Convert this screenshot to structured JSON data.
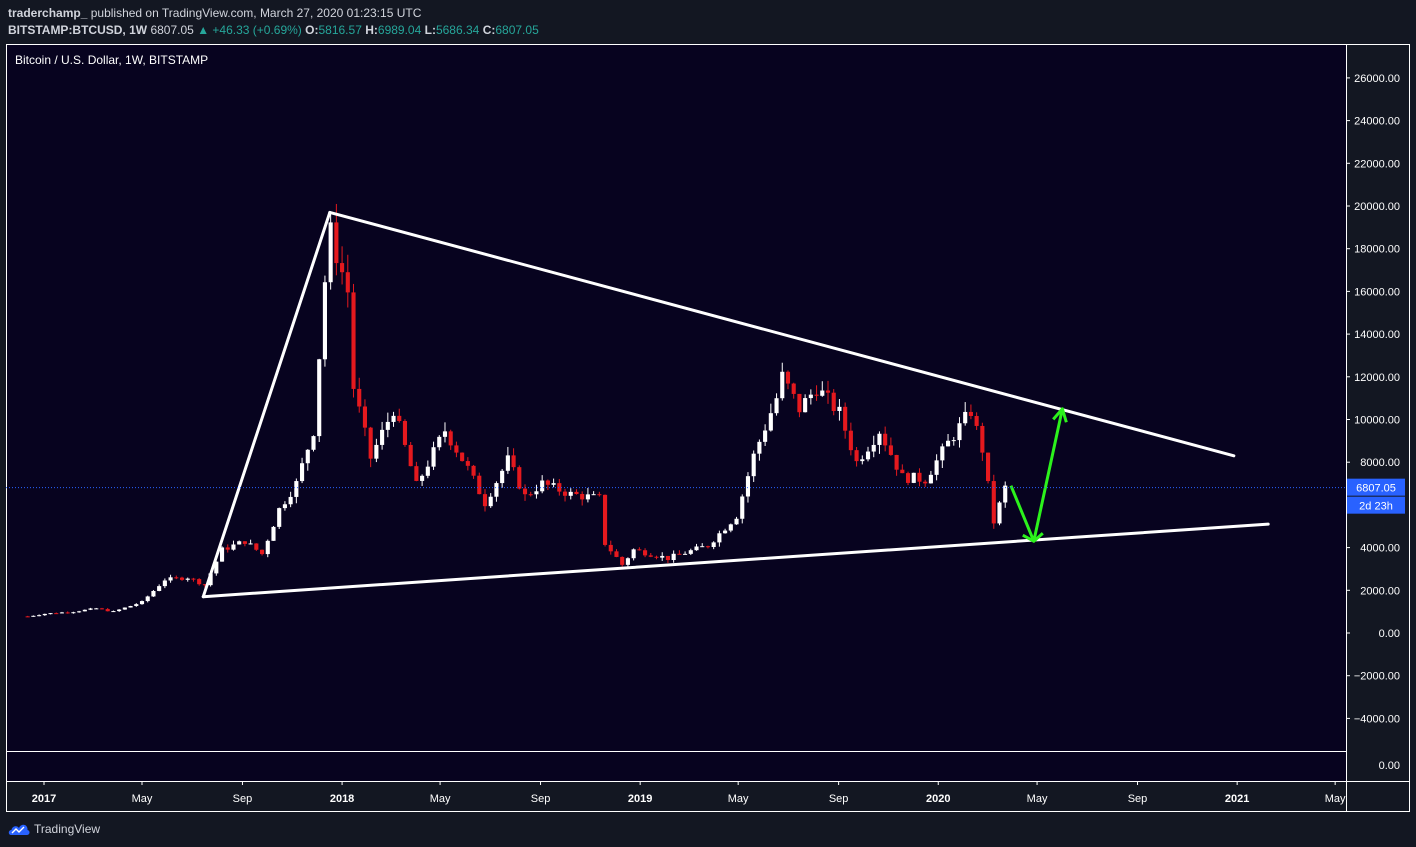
{
  "header": {
    "author": "traderchamp_",
    "published_text": "published on TradingView.com, March 27, 2020 01:23:15 UTC",
    "symbol": "BITSTAMP:BTCUSD, 1W",
    "last": "6807.05",
    "change": "▲ +46.33 (+0.69%)",
    "open_label": "O:",
    "open": "5816.57",
    "high_label": "H:",
    "high": "6989.04",
    "low_label": "L:",
    "low": "5686.34",
    "close_label": "C:",
    "close": "6807.05"
  },
  "footer": {
    "brand": "TradingView"
  },
  "colors": {
    "background": "#07031f",
    "up": "#ffffff",
    "down": "#e5191e",
    "trendline": "#ffffff",
    "arrow": "#2cf21c",
    "price_line": "#2962ff"
  },
  "chart_data": {
    "type": "candlestick",
    "title": "Bitcoin / U.S. Dollar, 1W, BITSTAMP",
    "ylim": [
      -5000,
      27000
    ],
    "y_ticks": [
      26000,
      24000,
      22000,
      20000,
      18000,
      16000,
      14000,
      12000,
      10000,
      8000,
      4000,
      2000,
      0,
      -2000,
      -4000
    ],
    "y_tick_labels": [
      "26000.00",
      "24000.00",
      "22000.00",
      "20000.00",
      "18000.00",
      "16000.00",
      "14000.00",
      "12000.00",
      "10000.00",
      "8000.00",
      "4000.00",
      "2000.00",
      "0.00",
      "−2000.00",
      "−4000.00"
    ],
    "secondary_pane_tick": "0.00",
    "x_tick_labels": [
      "2017",
      "May",
      "Sep",
      "2018",
      "May",
      "Sep",
      "2019",
      "May",
      "Sep",
      "2020",
      "May",
      "Sep",
      "2021",
      "May"
    ],
    "x_tick_dates": [
      "2017-01-01",
      "2017-05-01",
      "2017-09-01",
      "2018-01-01",
      "2018-05-01",
      "2018-09-01",
      "2019-01-01",
      "2019-05-01",
      "2019-09-01",
      "2020-01-01",
      "2020-05-01",
      "2020-09-01",
      "2021-01-01",
      "2021-05-01"
    ],
    "current_price": 6807.05,
    "current_price_label": "6807.05",
    "countdown_label": "2d 23h",
    "series_weekly_close": [
      [
        "2016-12-12",
        780
      ],
      [
        "2017-01-02",
        900
      ],
      [
        "2017-02-06",
        1000
      ],
      [
        "2017-03-06",
        1150
      ],
      [
        "2017-03-27",
        1000
      ],
      [
        "2017-05-01",
        1450
      ],
      [
        "2017-05-29",
        2500
      ],
      [
        "2017-06-26",
        2600
      ],
      [
        "2017-07-17",
        2250
      ],
      [
        "2017-08-07",
        3900
      ],
      [
        "2017-09-04",
        4300
      ],
      [
        "2017-09-25",
        3700
      ],
      [
        "2017-10-16",
        5800
      ],
      [
        "2017-11-06",
        7000
      ],
      [
        "2017-11-27",
        9500
      ],
      [
        "2017-12-11",
        16500
      ],
      [
        "2017-12-18",
        18700
      ],
      [
        "2018-01-08",
        16000
      ],
      [
        "2018-01-15",
        11500
      ],
      [
        "2018-02-05",
        8200
      ],
      [
        "2018-03-05",
        10500
      ],
      [
        "2018-04-02",
        6900
      ],
      [
        "2018-05-07",
        9500
      ],
      [
        "2018-06-04",
        7700
      ],
      [
        "2018-06-25",
        6100
      ],
      [
        "2018-07-23",
        8100
      ],
      [
        "2018-08-13",
        6400
      ],
      [
        "2018-09-03",
        7000
      ],
      [
        "2018-10-08",
        6500
      ],
      [
        "2018-11-12",
        6300
      ],
      [
        "2018-11-19",
        4200
      ],
      [
        "2018-12-10",
        3200
      ],
      [
        "2018-12-24",
        3900
      ],
      [
        "2019-02-04",
        3500
      ],
      [
        "2019-03-25",
        4100
      ],
      [
        "2019-04-29",
        5500
      ],
      [
        "2019-05-20",
        8300
      ],
      [
        "2019-06-17",
        11000
      ],
      [
        "2019-06-24",
        12000
      ],
      [
        "2019-07-15",
        10500
      ],
      [
        "2019-08-05",
        11500
      ],
      [
        "2019-09-02",
        10300
      ],
      [
        "2019-09-23",
        8000
      ],
      [
        "2019-10-21",
        9500
      ],
      [
        "2019-11-18",
        7300
      ],
      [
        "2019-12-16",
        7200
      ],
      [
        "2020-01-13",
        8900
      ],
      [
        "2020-02-10",
        10400
      ],
      [
        "2020-02-24",
        8600
      ],
      [
        "2020-03-09",
        5200
      ],
      [
        "2020-03-23",
        6807
      ]
    ],
    "annotations": [
      {
        "type": "trendline",
        "from": [
          "2017-07-15",
          1700
        ],
        "to": [
          "2017-12-17",
          19700
        ]
      },
      {
        "type": "trendline",
        "from": [
          "2017-12-17",
          19700
        ],
        "to": [
          "2020-12-28",
          8300
        ]
      },
      {
        "type": "trendline",
        "from": [
          "2017-07-15",
          1700
        ],
        "to": [
          "2021-02-08",
          5100
        ]
      },
      {
        "type": "arrow",
        "points": [
          [
            "2020-03-30",
            6900
          ],
          [
            "2020-04-27",
            4300
          ],
          [
            "2020-06-01",
            10500
          ]
        ]
      }
    ]
  }
}
